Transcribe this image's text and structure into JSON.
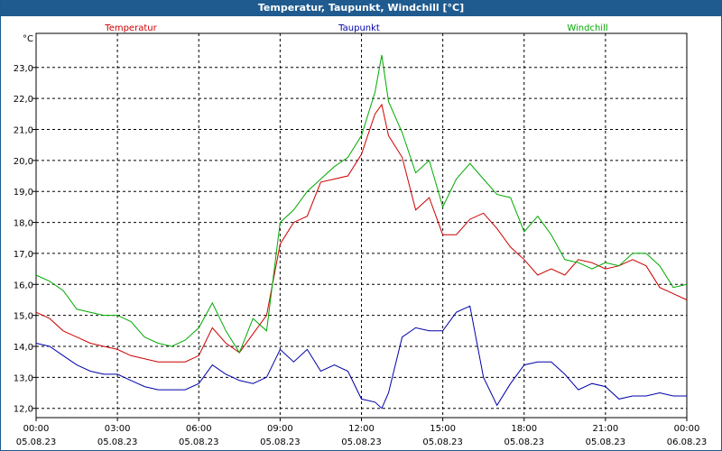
{
  "window": {
    "title": "Temperatur, Taupunkt, Windchill [°C]"
  },
  "chart_data": {
    "type": "line",
    "title": "Temperatur, Taupunkt, Windchill [°C]",
    "ylabel": "°C",
    "ylim": [
      11.7,
      24.1
    ],
    "yticks": [
      "12,0",
      "13,0",
      "14,0",
      "15,0",
      "16,0",
      "17,0",
      "18,0",
      "19,0",
      "20,0",
      "21,0",
      "22,0",
      "23,0"
    ],
    "xlim": [
      0,
      24
    ],
    "xticks": [
      {
        "time": "00:00",
        "date": "05.08.23"
      },
      {
        "time": "03:00",
        "date": "05.08.23"
      },
      {
        "time": "06:00",
        "date": "05.08.23"
      },
      {
        "time": "09:00",
        "date": "05.08.23"
      },
      {
        "time": "12:00",
        "date": "05.08.23"
      },
      {
        "time": "15:00",
        "date": "05.08.23"
      },
      {
        "time": "18:00",
        "date": "05.08.23"
      },
      {
        "time": "21:00",
        "date": "05.08.23"
      },
      {
        "time": "00:00",
        "date": "06.08.23"
      }
    ],
    "grid": true,
    "legend_position": "top",
    "x": [
      0,
      0.5,
      1,
      1.5,
      2,
      2.5,
      3,
      3.5,
      4,
      4.5,
      5,
      5.5,
      6,
      6.5,
      7,
      7.5,
      8,
      8.5,
      9,
      9.5,
      10,
      10.5,
      11,
      11.5,
      12,
      12.5,
      12.75,
      13,
      13.5,
      14,
      14.5,
      15,
      15.5,
      16,
      16.5,
      17,
      17.5,
      18,
      18.5,
      19,
      19.5,
      20,
      20.5,
      21,
      21.5,
      22,
      22.5,
      23,
      23.5,
      24
    ],
    "series": [
      {
        "name": "Temperatur",
        "color": "#cc0000",
        "values": [
          15.1,
          14.9,
          14.5,
          14.3,
          14.1,
          14.0,
          13.9,
          13.7,
          13.6,
          13.5,
          13.5,
          13.5,
          13.7,
          14.6,
          14.1,
          13.8,
          14.4,
          15.0,
          17.3,
          18.0,
          18.2,
          19.3,
          19.4,
          19.5,
          20.2,
          21.5,
          21.8,
          20.8,
          20.1,
          18.4,
          18.8,
          17.6,
          17.6,
          18.1,
          18.3,
          17.8,
          17.2,
          16.8,
          16.3,
          16.5,
          16.3,
          16.8,
          16.7,
          16.5,
          16.6,
          16.8,
          16.6,
          15.9,
          15.7,
          15.5
        ]
      },
      {
        "name": "Taupunkt",
        "color": "#0000aa",
        "values": [
          14.1,
          14.0,
          13.7,
          13.4,
          13.2,
          13.1,
          13.1,
          12.9,
          12.7,
          12.6,
          12.6,
          12.6,
          12.8,
          13.4,
          13.1,
          12.9,
          12.8,
          13.0,
          13.9,
          13.5,
          13.9,
          13.2,
          13.4,
          13.2,
          12.3,
          12.2,
          12.0,
          12.5,
          14.3,
          14.6,
          14.5,
          14.5,
          15.1,
          15.3,
          13.0,
          12.1,
          12.8,
          13.4,
          13.5,
          13.5,
          13.1,
          12.6,
          12.8,
          12.7,
          12.3,
          12.4,
          12.4,
          12.5,
          12.4,
          12.4
        ]
      },
      {
        "name": "Windchill",
        "color": "#00aa00",
        "values": [
          16.3,
          16.1,
          15.8,
          15.2,
          15.1,
          15.0,
          15.0,
          14.8,
          14.3,
          14.1,
          14.0,
          14.2,
          14.6,
          15.4,
          14.5,
          13.8,
          14.9,
          14.5,
          18.0,
          18.4,
          19.0,
          19.4,
          19.8,
          20.1,
          20.8,
          22.2,
          23.4,
          21.9,
          20.9,
          19.6,
          20.0,
          18.5,
          19.4,
          19.9,
          19.4,
          18.9,
          18.8,
          17.7,
          18.2,
          17.6,
          16.8,
          16.7,
          16.5,
          16.7,
          16.6,
          17.0,
          17.0,
          16.6,
          15.9,
          16.0
        ]
      }
    ]
  }
}
